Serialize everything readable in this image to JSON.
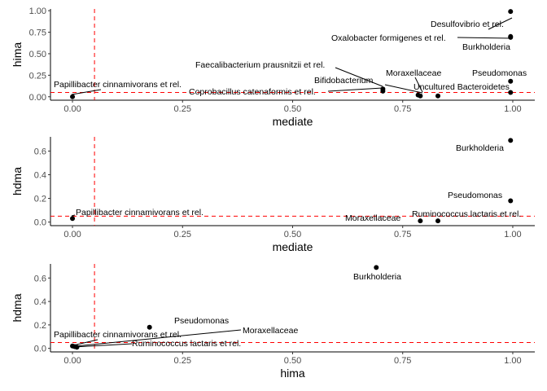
{
  "chart_data": [
    {
      "type": "scatter",
      "xlabel": "mediate",
      "ylabel": "hima",
      "xlim": [
        -0.05,
        1.05
      ],
      "ylim": [
        -0.04,
        1.02
      ],
      "x_ticks": [
        "0.00",
        "0.25",
        "0.50",
        "0.75",
        "1.00"
      ],
      "y_ticks": [
        "0.00",
        "0.25",
        "0.50",
        "0.75",
        "1.00"
      ],
      "y_tick_values": [
        0,
        0.25,
        0.5,
        0.75,
        1.0
      ],
      "threshold_x": 0.05,
      "threshold_y": 0.05,
      "grid": false,
      "points": [
        {
          "label": "Papillibacter cinnamivorans et rel.",
          "x": 0.0,
          "y": 0.0
        },
        {
          "label": "Coprobacillus catenaformis et rel.",
          "x": 0.705,
          "y": 0.065
        },
        {
          "label": "Faecalibacterium prausnitzii et rel.",
          "x": 0.705,
          "y": 0.09
        },
        {
          "label": "Bifidobacterium",
          "x": 0.785,
          "y": 0.02
        },
        {
          "label": "Moraxellaceae",
          "x": 0.79,
          "y": 0.01
        },
        {
          "label": "Uncultured Bacteroidetes",
          "x": 0.83,
          "y": 0.01
        },
        {
          "label": "Pseudomonas",
          "x": 0.995,
          "y": 0.05
        },
        {
          "label": "Desulfovibrio et rel.",
          "x": 0.995,
          "y": 0.99
        },
        {
          "label": "Oxalobacter formigenes et rel.",
          "x": 0.995,
          "y": 0.7
        },
        {
          "label": "Burkholderia",
          "x": 0.995,
          "y": 0.69
        },
        {
          "label": "",
          "x": 0.995,
          "y": 0.18
        }
      ]
    },
    {
      "type": "scatter",
      "xlabel": "mediate",
      "ylabel": "hdma",
      "xlim": [
        -0.05,
        1.05
      ],
      "ylim": [
        -0.03,
        0.72
      ],
      "x_ticks": [
        "0.00",
        "0.25",
        "0.50",
        "0.75",
        "1.00"
      ],
      "y_ticks": [
        "0.0",
        "0.2",
        "0.4",
        "0.6"
      ],
      "y_tick_values": [
        0,
        0.2,
        0.4,
        0.6
      ],
      "threshold_x": 0.05,
      "threshold_y": 0.05,
      "grid": false,
      "points": [
        {
          "label": "Papillibacter cinnamivorans et rel.",
          "x": 0.0,
          "y": 0.03
        },
        {
          "label": "Moraxellaceae",
          "x": 0.79,
          "y": 0.01
        },
        {
          "label": "Ruminococcus lactaris et rel.",
          "x": 0.83,
          "y": 0.01
        },
        {
          "label": "Pseudomonas",
          "x": 0.995,
          "y": 0.18
        },
        {
          "label": "Burkholderia",
          "x": 0.995,
          "y": 0.69
        }
      ]
    },
    {
      "type": "scatter",
      "xlabel": "hima",
      "ylabel": "hdma",
      "xlim": [
        -0.05,
        1.05
      ],
      "ylim": [
        -0.03,
        0.72
      ],
      "x_ticks": [
        "0.00",
        "0.25",
        "0.50",
        "0.75",
        "1.00"
      ],
      "y_ticks": [
        "0.0",
        "0.2",
        "0.4",
        "0.6"
      ],
      "y_tick_values": [
        0,
        0.2,
        0.4,
        0.6
      ],
      "threshold_x": 0.05,
      "threshold_y": 0.05,
      "grid": false,
      "points": [
        {
          "label": "Papillibacter cinnamivorans et rel.",
          "x": 0.0,
          "y": 0.02
        },
        {
          "label": "Ruminococcus lactaris et rel.",
          "x": 0.01,
          "y": 0.01
        },
        {
          "label": "Moraxellaceae",
          "x": 0.005,
          "y": 0.015
        },
        {
          "label": "Pseudomonas",
          "x": 0.175,
          "y": 0.18
        },
        {
          "label": "Burkholderia",
          "x": 0.69,
          "y": 0.69
        }
      ]
    }
  ]
}
